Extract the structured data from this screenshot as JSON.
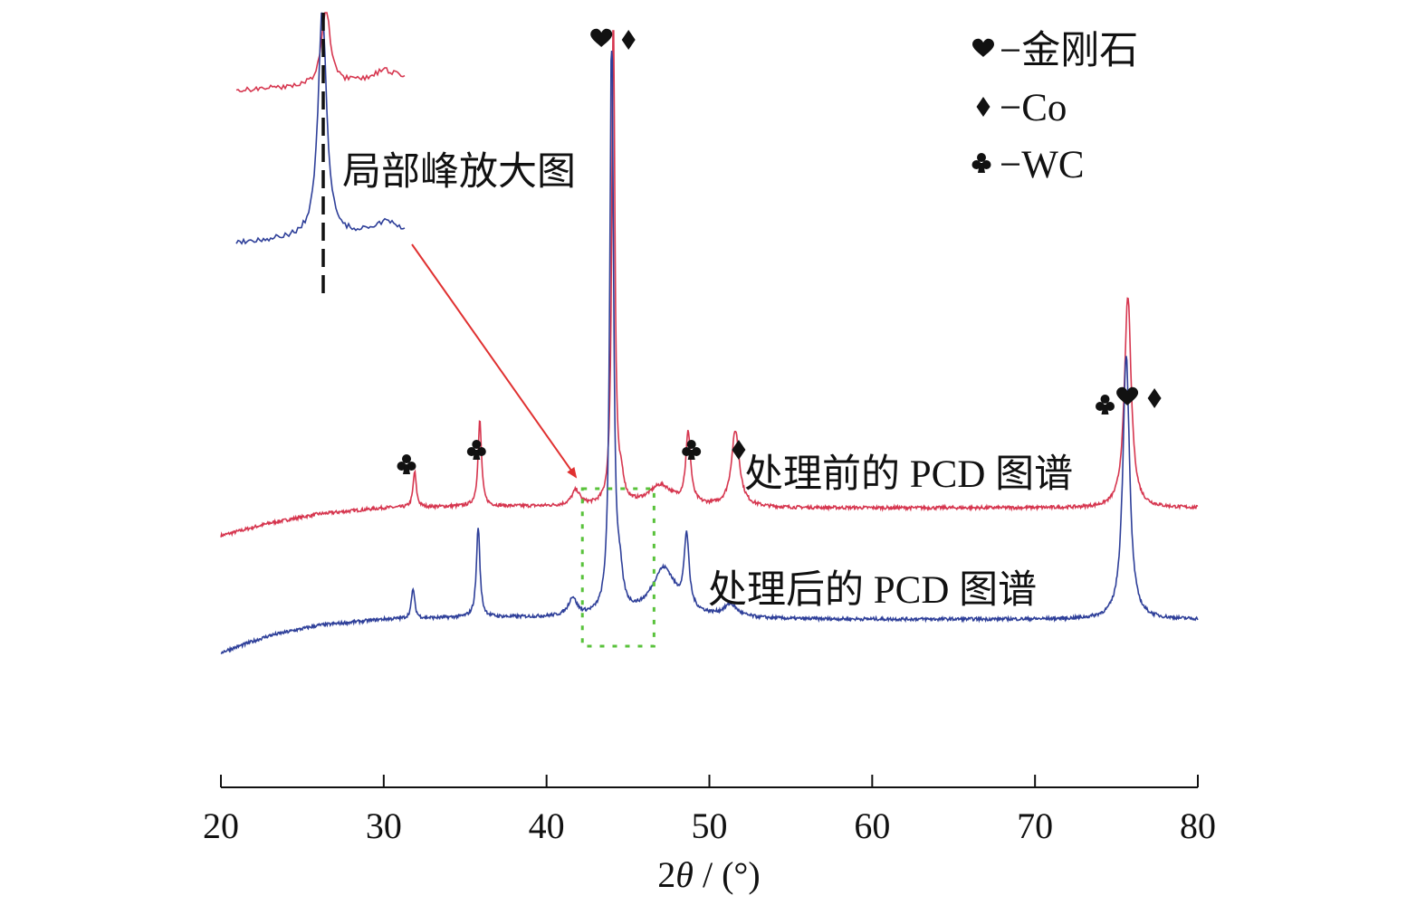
{
  "chart_data": {
    "type": "line",
    "xlabel_main": "2",
    "xlabel_theta": "θ",
    "xlabel_unit": " / (°)",
    "xlim": [
      20,
      80
    ],
    "ylim": [
      0,
      1
    ],
    "x_ticks": [
      "20",
      "30",
      "40",
      "50",
      "60",
      "70",
      "80"
    ],
    "grid": false,
    "legend_placement": "top-right",
    "legend": [
      {
        "symbol": "heart",
        "label": "−金刚石"
      },
      {
        "symbol": "diamond",
        "label": "−Co"
      },
      {
        "symbol": "club",
        "label": "−WC"
      }
    ],
    "series": [
      {
        "name": "处理前的 PCD 图谱",
        "color": "#d6364f",
        "baseline": [
          [
            20.0,
            0.0
          ],
          [
            23.0,
            0.025
          ],
          [
            26.0,
            0.043
          ],
          [
            30.0,
            0.055
          ],
          [
            35.0,
            0.058
          ],
          [
            40.0,
            0.058
          ],
          [
            47.0,
            0.058
          ],
          [
            55.0,
            0.055
          ],
          [
            65.0,
            0.055
          ],
          [
            80.0,
            0.055
          ]
        ],
        "peaks": [
          {
            "x": 31.9,
            "y": 0.07,
            "w": 0.12
          },
          {
            "x": 35.9,
            "y": 0.17,
            "w": 0.13
          },
          {
            "x": 41.8,
            "y": 0.03,
            "w": 0.3
          },
          {
            "x": 44.1,
            "y": 1.0,
            "w": 0.11
          },
          {
            "x": 44.6,
            "y": 0.04,
            "w": 0.2
          },
          {
            "x": 47.0,
            "y": 0.04,
            "w": 0.9
          },
          {
            "x": 48.7,
            "y": 0.14,
            "w": 0.18
          },
          {
            "x": 51.6,
            "y": 0.15,
            "w": 0.3
          },
          {
            "x": 75.7,
            "y": 0.42,
            "w": 0.25
          }
        ]
      },
      {
        "name": "处理后的 PCD 图谱",
        "color": "#2e3f99",
        "baseline": [
          [
            20.0,
            0.0
          ],
          [
            23.0,
            0.028
          ],
          [
            26.0,
            0.045
          ],
          [
            30.0,
            0.055
          ],
          [
            35.0,
            0.058
          ],
          [
            40.0,
            0.058
          ],
          [
            47.0,
            0.058
          ],
          [
            55.0,
            0.055
          ],
          [
            65.0,
            0.055
          ],
          [
            80.0,
            0.055
          ]
        ],
        "peaks": [
          {
            "x": 31.8,
            "y": 0.05,
            "w": 0.12
          },
          {
            "x": 35.8,
            "y": 0.15,
            "w": 0.13
          },
          {
            "x": 41.6,
            "y": 0.03,
            "w": 0.3
          },
          {
            "x": 44.0,
            "y": 1.0,
            "w": 0.13
          },
          {
            "x": 44.5,
            "y": 0.05,
            "w": 0.22
          },
          {
            "x": 47.2,
            "y": 0.08,
            "w": 0.9
          },
          {
            "x": 48.6,
            "y": 0.12,
            "w": 0.18
          },
          {
            "x": 51.3,
            "y": 0.02,
            "w": 0.5
          },
          {
            "x": 75.6,
            "y": 0.44,
            "w": 0.25
          }
        ]
      }
    ],
    "peak_markers": [
      {
        "x": 31.4,
        "symbols": [
          "club"
        ]
      },
      {
        "x": 35.7,
        "symbols": [
          "club"
        ]
      },
      {
        "x": 44.2,
        "symbols": [
          "heart",
          "diamond"
        ]
      },
      {
        "x": 48.9,
        "symbols": [
          "club"
        ]
      },
      {
        "x": 51.8,
        "symbols": [
          "diamond"
        ]
      },
      {
        "x": 74.3,
        "symbols": [
          "club"
        ]
      },
      {
        "x": 76.5,
        "symbols": [
          "heart",
          "diamond"
        ]
      }
    ],
    "inset_label": "局部峰放大图",
    "inset_region": {
      "x_from": 42.2,
      "x_to": 46.6
    }
  }
}
